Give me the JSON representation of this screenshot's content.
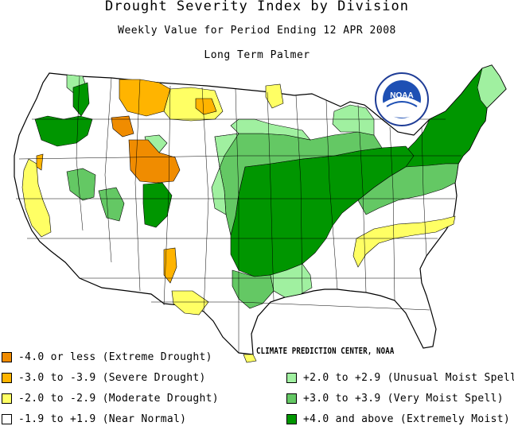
{
  "titles": {
    "main": "Drought Severity Index by Division",
    "period": "Weekly Value for Period Ending 12 APR 2008",
    "index": "Long Term Palmer"
  },
  "logo_text": "NOAA",
  "credit": "CLIMATE PREDICTION CENTER, NOAA",
  "colors": {
    "extreme_drought": "#f08c00",
    "severe_drought": "#ffb400",
    "moderate_drought": "#ffff64",
    "near_normal": "#ffffff",
    "unusual_moist": "#a0f0a0",
    "very_moist": "#64c864",
    "extremely_moist": "#009600"
  },
  "legend_left": [
    {
      "label": "-4.0 or less (Extreme Drought)",
      "color": "#f08c00"
    },
    {
      "label": "-3.0 to -3.9 (Severe Drought)",
      "color": "#ffb400"
    },
    {
      "label": "-2.0 to -2.9 (Moderate Drought)",
      "color": "#ffff64"
    },
    {
      "label": "-1.9 to +1.9 (Near Normal)",
      "color": "#ffffff"
    }
  ],
  "legend_right": [
    {
      "label": "+2.0 to +2.9 (Unusual Moist Spell)",
      "color": "#a0f0a0"
    },
    {
      "label": "+3.0 to +3.9 (Very Moist Spell)",
      "color": "#64c864"
    },
    {
      "label": "+4.0 and above (Extremely Moist)",
      "color": "#009600"
    }
  ]
}
